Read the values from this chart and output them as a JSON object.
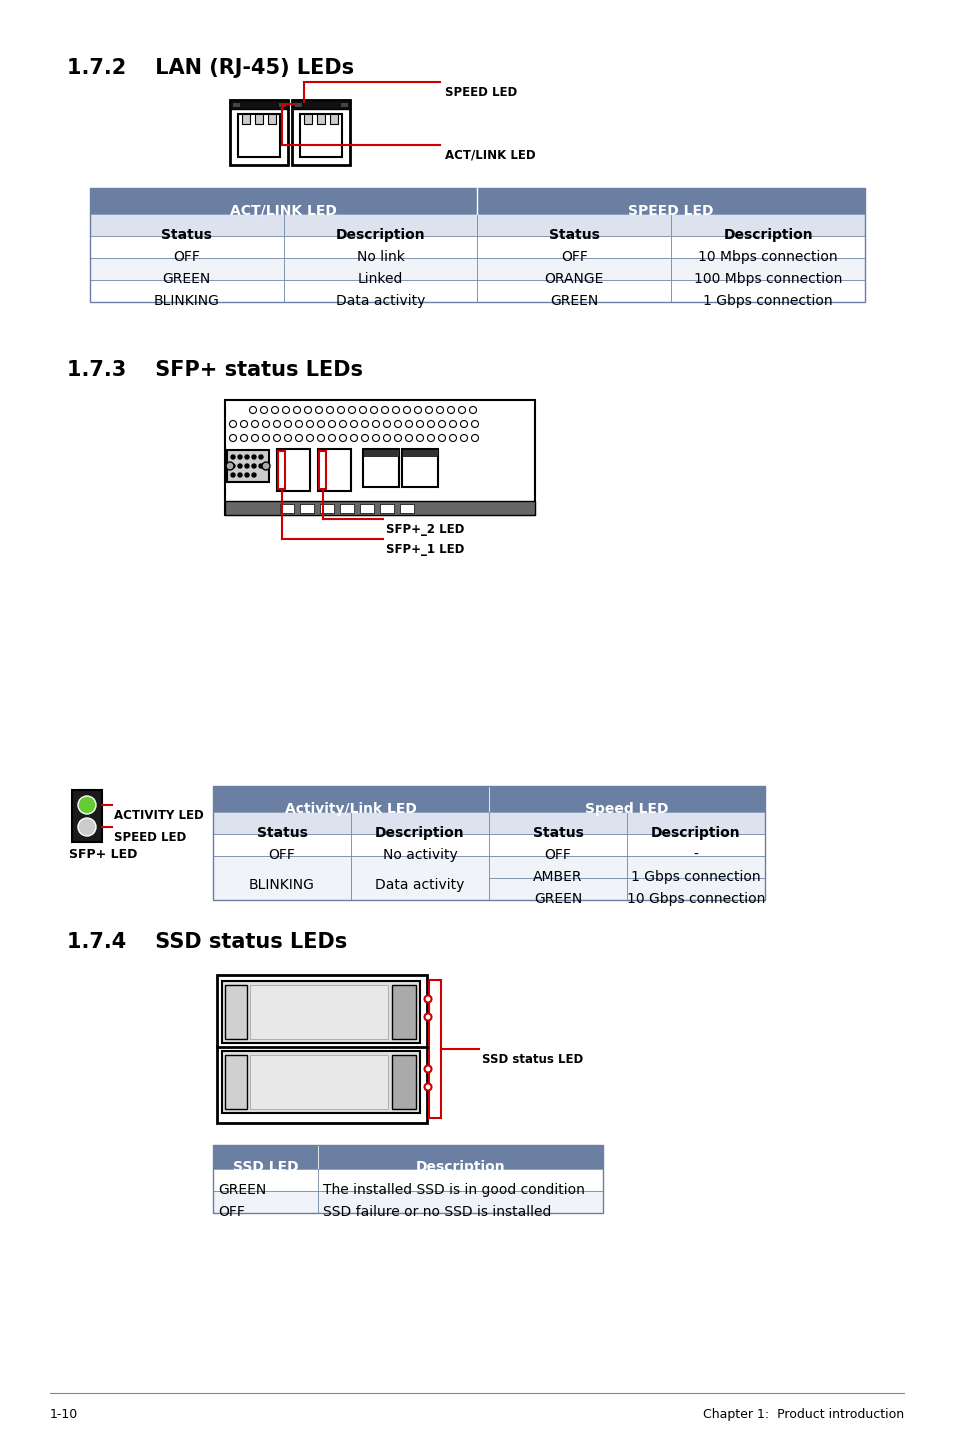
{
  "bg_color": "#ffffff",
  "section172_title": "1.7.2    LAN (RJ-45) LEDs",
  "section173_title": "1.7.3    SFP+ status LEDs",
  "section174_title": "1.7.4    SSD status LEDs",
  "header_color": "#6b7fa3",
  "header_text_color": "#ffffff",
  "subheader_color": "#dde3ee",
  "row_color_odd": "#ffffff",
  "row_color_even": "#f0f3f8",
  "table_border_color": "#6b7fa3",
  "red_color": "#cc0000",
  "footer_text_left": "1-10",
  "footer_text_right": "Chapter 1:  Product introduction",
  "lan_table_headers": [
    "ACT/LINK LED",
    "SPEED LED"
  ],
  "lan_col_headers": [
    "Status",
    "Description",
    "Status",
    "Description"
  ],
  "lan_rows": [
    [
      "OFF",
      "No link",
      "OFF",
      "10 Mbps connection"
    ],
    [
      "GREEN",
      "Linked",
      "ORANGE",
      "100 Mbps connection"
    ],
    [
      "BLINKING",
      "Data activity",
      "GREEN",
      "1 Gbps connection"
    ]
  ],
  "sfp_table_headers": [
    "Activity/Link LED",
    "Speed LED"
  ],
  "sfp_col_headers": [
    "Status",
    "Description",
    "Status",
    "Description"
  ],
  "ssd_table_headers": [
    "SSD LED",
    "Description"
  ],
  "ssd_rows": [
    [
      "GREEN",
      "The installed SSD is in good condition"
    ],
    [
      "OFF",
      "SSD failure or no SSD is installed"
    ]
  ],
  "speed_led_label": "SPEED LED",
  "actlink_led_label": "ACT/LINK LED",
  "sfp2_led_label": "SFP+_2 LED",
  "sfp1_led_label": "SFP+_1 LED",
  "ssd_status_led_label": "SSD status LED",
  "activity_led_label": "ACTIVITY LED",
  "speed_led_label2": "SPEED LED",
  "sfp_led_label": "SFP+ LED"
}
